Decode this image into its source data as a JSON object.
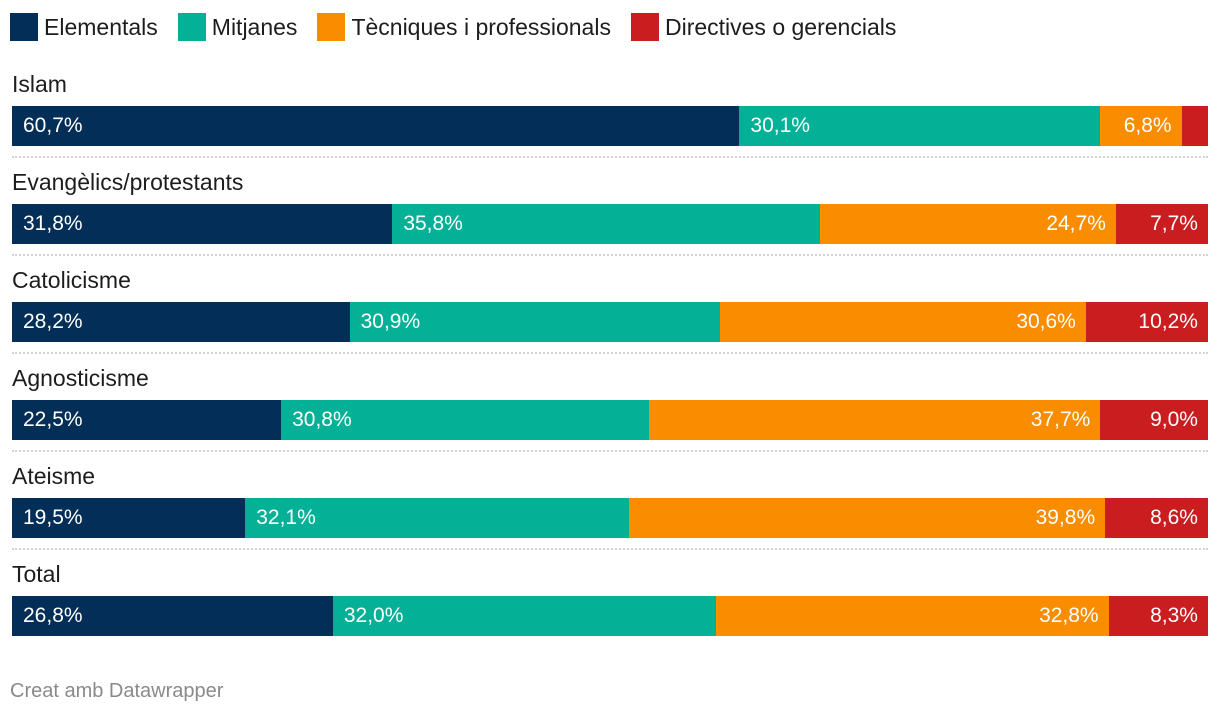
{
  "chart_data": {
    "type": "bar",
    "orientation": "horizontal",
    "stacked": true,
    "normalized_percent": true,
    "categories": [
      "Islam",
      "Evangèlics/protestants",
      "Catolicisme",
      "Agnosticisme",
      "Ateisme",
      "Total"
    ],
    "series": [
      {
        "name": "Elementals",
        "color": "#032e57",
        "values": [
          60.7,
          31.8,
          28.2,
          22.5,
          19.5,
          26.8
        ],
        "labels": [
          "60,7%",
          "31,8%",
          "28,2%",
          "22,5%",
          "19,5%",
          "26,8%"
        ]
      },
      {
        "name": "Mitjanes",
        "color": "#04b096",
        "values": [
          30.1,
          35.8,
          30.9,
          30.8,
          32.1,
          32.0
        ],
        "labels": [
          "30,1%",
          "35,8%",
          "30,9%",
          "30,8%",
          "32,1%",
          "32,0%"
        ]
      },
      {
        "name": "Tècniques i professionals",
        "color": "#fa8c00",
        "values": [
          6.8,
          24.7,
          30.6,
          37.7,
          39.8,
          32.8
        ],
        "labels": [
          "6,8%",
          "24,7%",
          "30,6%",
          "37,7%",
          "39,8%",
          "32,8%"
        ]
      },
      {
        "name": "Directives o gerencials",
        "color": "#c91d20",
        "values": [
          2.2,
          7.7,
          10.2,
          9.0,
          8.6,
          8.3
        ],
        "labels": [
          "",
          "7,7%",
          "10,2%",
          "9,0%",
          "8,6%",
          "8,3%"
        ]
      }
    ],
    "title": "",
    "xlabel": "",
    "ylabel": "",
    "xlim": [
      0,
      100
    ],
    "legend_position": "top-left",
    "grid": false
  },
  "footer": {
    "credit": "Creat amb Datawrapper"
  }
}
